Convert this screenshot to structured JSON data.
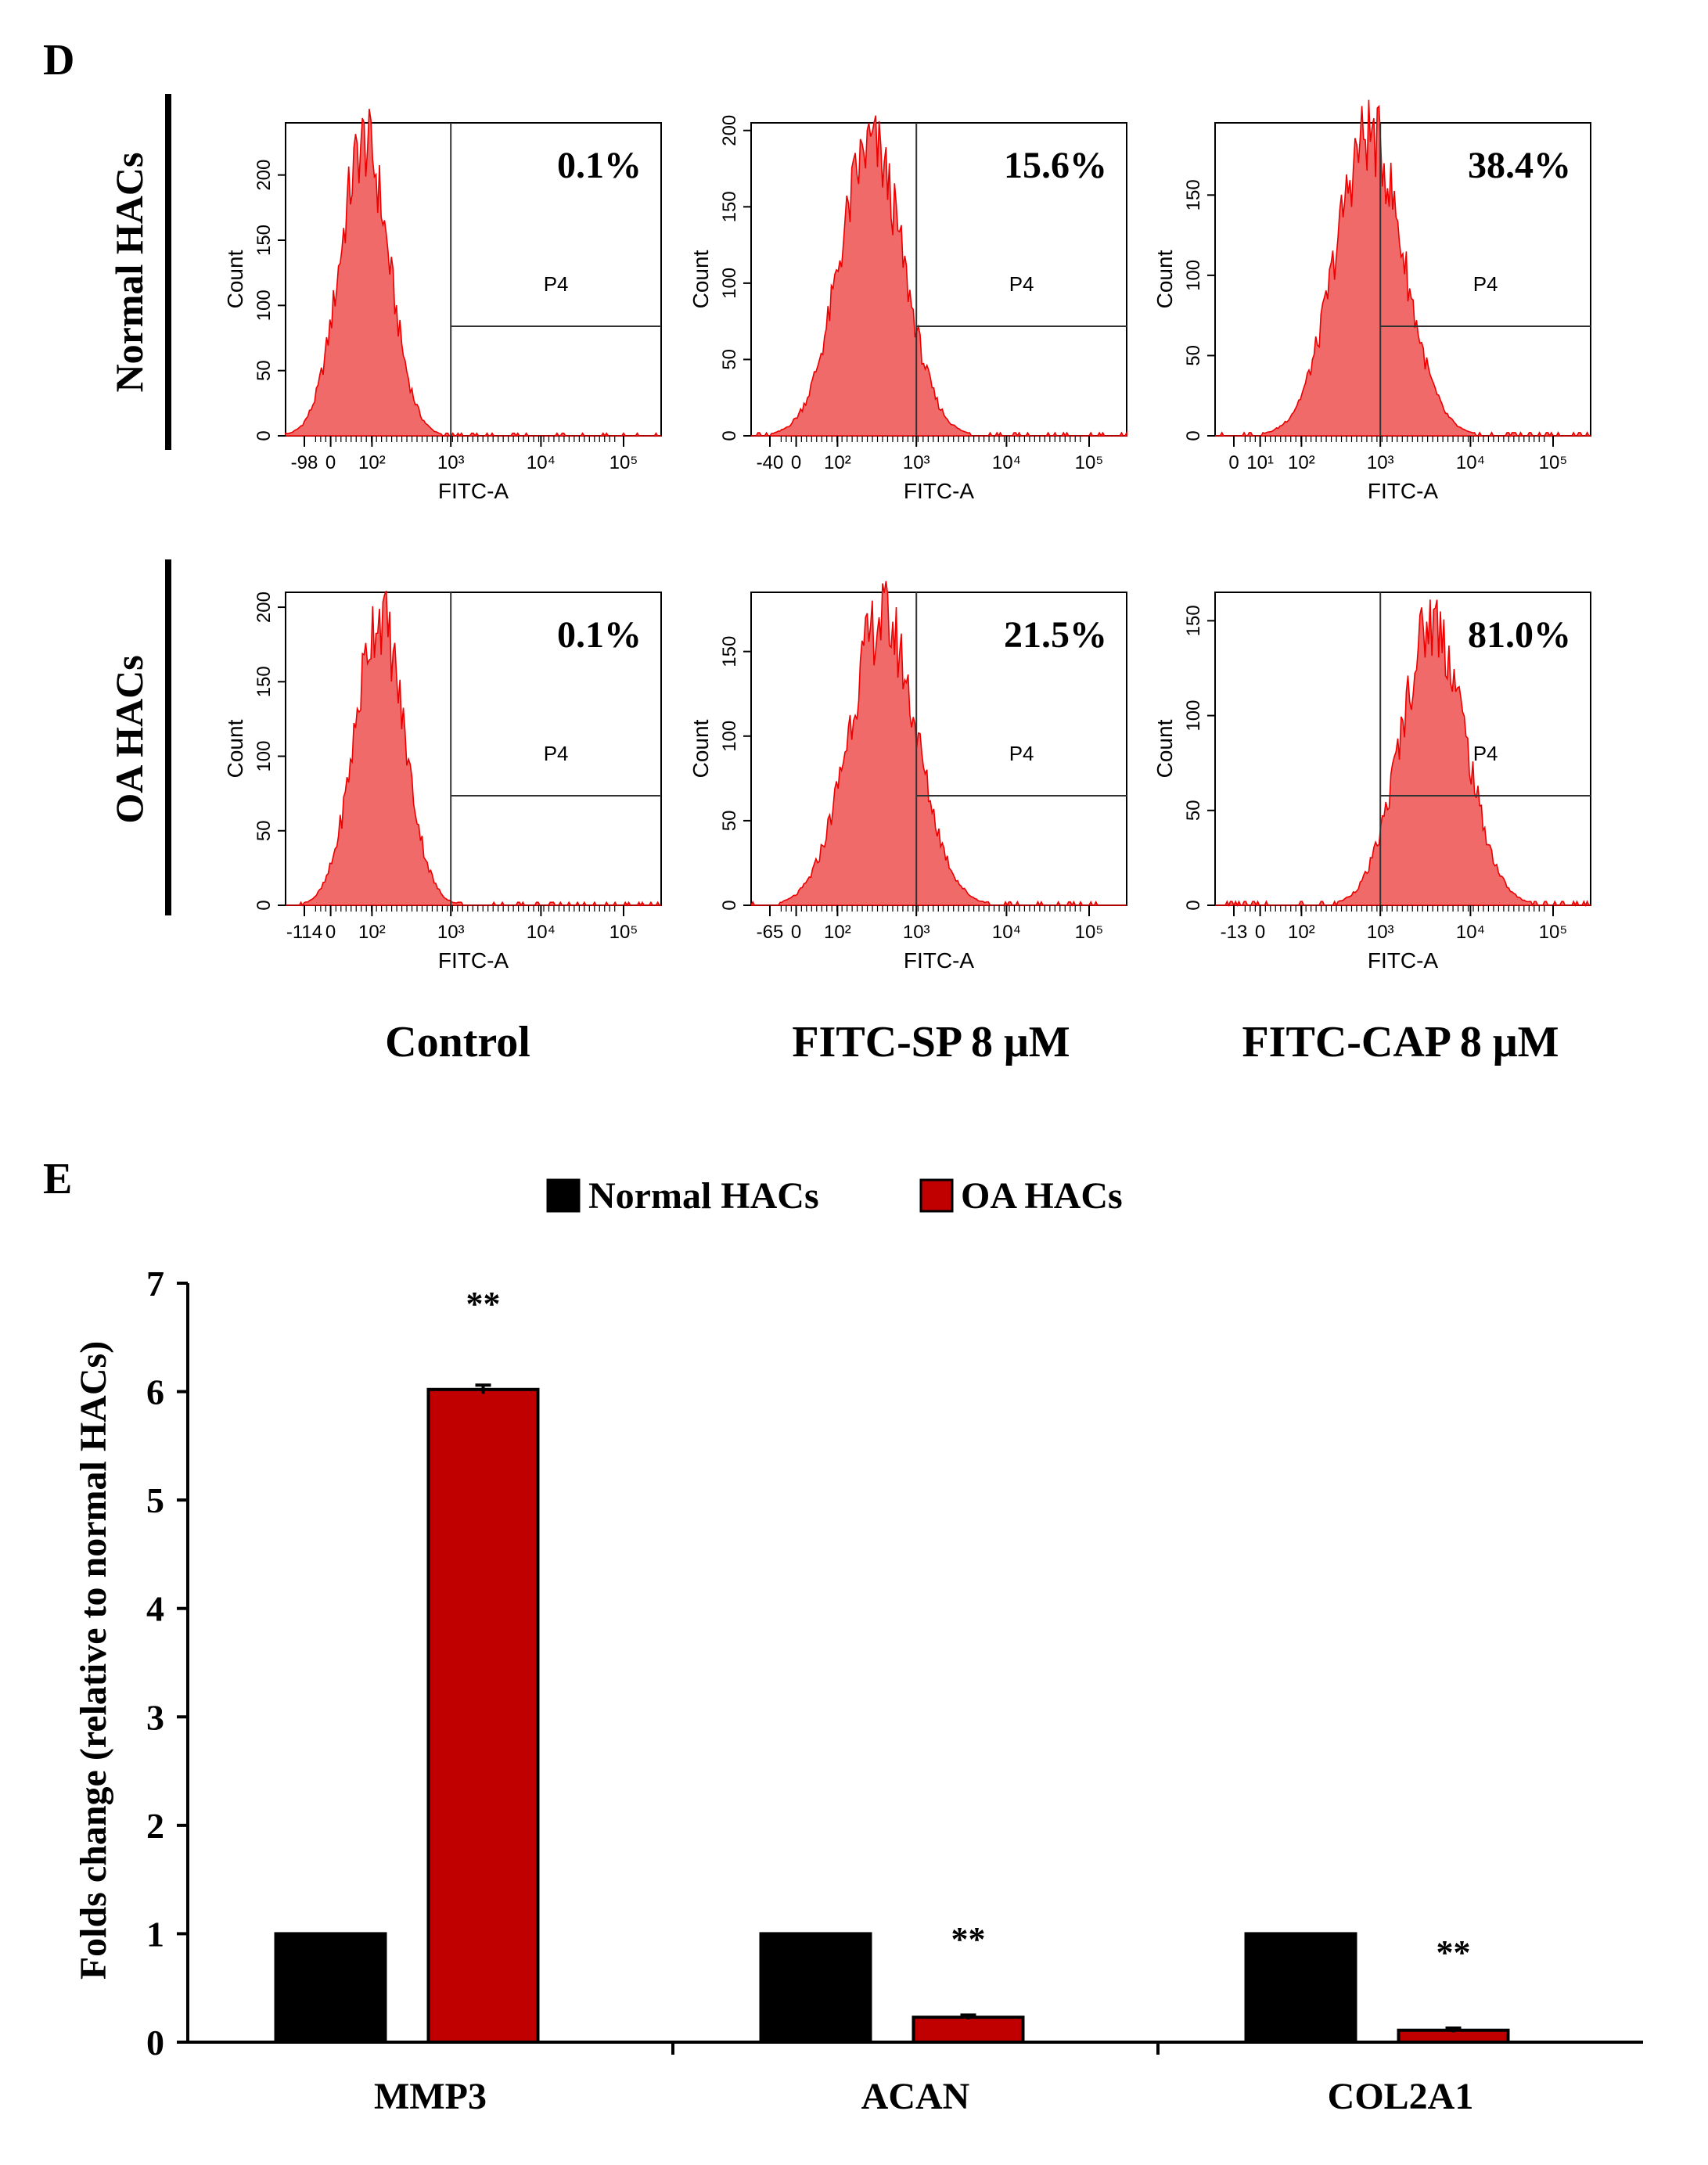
{
  "panel_d": {
    "letter": "D",
    "row_labels": [
      "Normal HACs",
      "OA HACs"
    ],
    "col_labels": [
      "Control",
      "FITC-SP 8 μM",
      "FITC-CAP 8 μM"
    ],
    "gate_label": "P4",
    "x_axis_label": "FITC-A",
    "y_axis_label": "Count"
  },
  "panel_e": {
    "letter": "E"
  },
  "colors": {
    "histogram_fill": "#f06a6a",
    "histogram_edge": "#ee0000",
    "normal": "#000000",
    "oa": "#c00000"
  },
  "chart_data": [
    {
      "type": "histogram",
      "row": "Normal HACs",
      "column": "Control",
      "percent_label": "0.1%",
      "x_ticks": [
        "-98",
        "0",
        "10²",
        "10³",
        "10⁴",
        "10⁵"
      ],
      "y_ticks": [
        "0",
        "50",
        "100",
        "150",
        "200"
      ],
      "ylim": [
        0,
        240
      ],
      "gate_start": "10³",
      "peak": [
        0.21,
        225
      ],
      "spread": 0.065
    },
    {
      "type": "histogram",
      "row": "Normal HACs",
      "column": "FITC-SP 8 μM",
      "percent_label": "15.6%",
      "x_ticks": [
        "-40",
        "0",
        "10²",
        "10³",
        "10⁴",
        "10⁵"
      ],
      "y_ticks": [
        "0",
        "50",
        "100",
        "150",
        "200"
      ],
      "ylim": [
        0,
        205
      ],
      "gate_start": "10³",
      "peak": [
        0.32,
        190
      ],
      "spread": 0.085
    },
    {
      "type": "histogram",
      "row": "Normal HACs",
      "column": "FITC-CAP 8 μM",
      "percent_label": "38.4%",
      "x_ticks": [
        "0",
        "10¹",
        "10²",
        "10³",
        "10⁴",
        "10⁵"
      ],
      "y_ticks": [
        "0",
        "50",
        "100",
        "150"
      ],
      "ylim": [
        0,
        195
      ],
      "gate_start": "10³",
      "peak": [
        0.41,
        188
      ],
      "spread": 0.09
    },
    {
      "type": "histogram",
      "row": "OA HACs",
      "column": "Control",
      "percent_label": "0.1%",
      "x_ticks": [
        "-114",
        "0",
        "10²",
        "10³",
        "10⁴",
        "10⁵"
      ],
      "y_ticks": [
        "0",
        "50",
        "100",
        "150",
        "200"
      ],
      "ylim": [
        0,
        210
      ],
      "gate_start": "10³",
      "peak": [
        0.25,
        195
      ],
      "spread": 0.065
    },
    {
      "type": "histogram",
      "row": "OA HACs",
      "column": "FITC-SP 8 μM",
      "percent_label": "21.5%",
      "x_ticks": [
        "-65",
        "0",
        "10²",
        "10³",
        "10⁴",
        "10⁵"
      ],
      "y_ticks": [
        "0",
        "50",
        "100",
        "150"
      ],
      "ylim": [
        0,
        185
      ],
      "gate_start": "10³",
      "peak": [
        0.35,
        170
      ],
      "spread": 0.09
    },
    {
      "type": "histogram",
      "row": "OA HACs",
      "column": "FITC-CAP 8 μM",
      "percent_label": "81.0%",
      "x_ticks": [
        "-13",
        "0",
        "10²",
        "10³",
        "10⁴",
        "10⁵"
      ],
      "y_ticks": [
        "0",
        "50",
        "100",
        "150"
      ],
      "ylim": [
        0,
        165
      ],
      "gate_start": "10³",
      "peak": [
        0.58,
        150
      ],
      "spread": 0.085
    },
    {
      "type": "bar",
      "title": "",
      "categories": [
        "MMP3",
        "ACAN",
        "COL2A1"
      ],
      "series": [
        {
          "name": "Normal HACs",
          "values": [
            1.0,
            1.0,
            1.0
          ],
          "errors": [
            0,
            0,
            0
          ]
        },
        {
          "name": "OA HACs",
          "values": [
            6.02,
            0.23,
            0.11
          ],
          "errors": [
            0.04,
            0.02,
            0.02
          ]
        }
      ],
      "significance": [
        "**",
        "**",
        "**"
      ],
      "xlabel": "",
      "ylabel": "Folds change (relative to normal HACs)",
      "ylim": [
        0,
        7
      ],
      "y_ticks": [
        0,
        1,
        2,
        3,
        4,
        5,
        6,
        7
      ],
      "legend_position": "top-center"
    }
  ]
}
